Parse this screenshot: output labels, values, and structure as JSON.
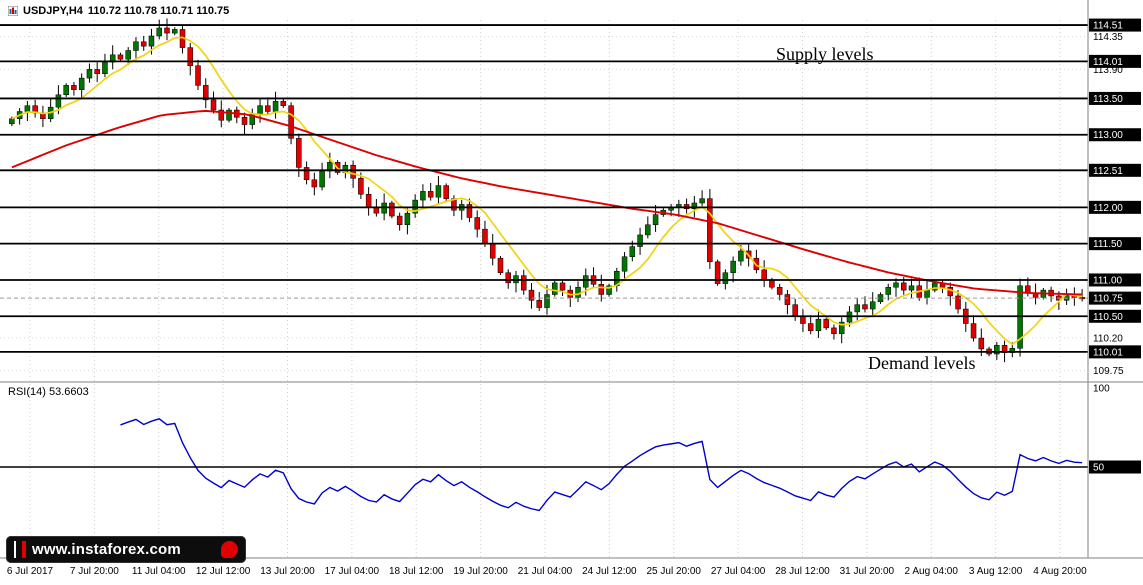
{
  "header": {
    "symbol": "USDJPY,H4",
    "ohlc": "110.72 110.78 110.71 110.75"
  },
  "annotations": {
    "supply": "Supply levels",
    "demand": "Demand levels"
  },
  "footer": {
    "logo_text": "www.instaforex.com"
  },
  "chart_data": {
    "type": "candlestick",
    "symbol": "USDJPY",
    "timeframe": "H4",
    "ohlc_current": {
      "open": 110.72,
      "high": 110.78,
      "low": 110.71,
      "close": 110.75
    },
    "colors": {
      "up": "#007500",
      "down": "#e00000",
      "ma_fast": "#f2d40e",
      "ma_slow": "#dd0000",
      "rsi": "#0000cc",
      "levels": "#000000"
    },
    "price_axis": {
      "min": 109.65,
      "max": 114.58,
      "labels": [
        {
          "text": "114.51",
          "value": 114.51,
          "tagged": true
        },
        {
          "text": "114.35",
          "value": 114.35,
          "tagged": false
        },
        {
          "text": "114.01",
          "value": 114.01,
          "tagged": true
        },
        {
          "text": "113.90",
          "value": 113.9,
          "tagged": false
        },
        {
          "text": "113.50",
          "value": 113.5,
          "tagged": true
        },
        {
          "text": "113.00",
          "value": 113.0,
          "tagged": true
        },
        {
          "text": "112.51",
          "value": 112.51,
          "tagged": true
        },
        {
          "text": "112.00",
          "value": 112.0,
          "tagged": true
        },
        {
          "text": "111.50",
          "value": 111.5,
          "tagged": true
        },
        {
          "text": "111.00",
          "value": 111.0,
          "tagged": true
        },
        {
          "text": "110.75",
          "value": 110.75,
          "tagged": true
        },
        {
          "text": "110.50",
          "value": 110.5,
          "tagged": true
        },
        {
          "text": "110.20",
          "value": 110.2,
          "tagged": false
        },
        {
          "text": "110.01",
          "value": 110.01,
          "tagged": true
        },
        {
          "text": "109.75",
          "value": 109.75,
          "tagged": false
        }
      ]
    },
    "hlines": [
      114.51,
      114.01,
      113.5,
      113.0,
      112.51,
      112.0,
      111.5,
      111.0,
      110.5,
      110.01
    ],
    "current_price": 110.75,
    "time_labels": [
      "6 Jul 2017",
      "7 Jul 20:00",
      "11 Jul 04:00",
      "12 Jul 12:00",
      "13 Jul 20:00",
      "17 Jul 04:00",
      "18 Jul 12:00",
      "19 Jul 20:00",
      "21 Jul 04:00",
      "24 Jul 12:00",
      "25 Jul 20:00",
      "27 Jul 04:00",
      "28 Jul 12:00",
      "31 Jul 20:00",
      "2 Aug 04:00",
      "3 Aug 12:00",
      "4 Aug 20:00"
    ],
    "candles": {
      "first_open": 113.15,
      "closes": [
        113.22,
        113.32,
        113.4,
        113.3,
        113.22,
        113.38,
        113.55,
        113.68,
        113.62,
        113.78,
        113.9,
        113.84,
        114.0,
        114.1,
        114.04,
        114.16,
        114.28,
        114.22,
        114.36,
        114.47,
        114.4,
        114.45,
        114.2,
        113.95,
        113.68,
        113.48,
        113.34,
        113.2,
        113.34,
        113.24,
        113.14,
        113.28,
        113.4,
        113.32,
        113.46,
        113.4,
        112.95,
        112.55,
        112.38,
        112.28,
        112.5,
        112.62,
        112.48,
        112.58,
        112.4,
        112.18,
        112.0,
        111.92,
        112.06,
        111.88,
        111.76,
        111.92,
        112.1,
        112.22,
        112.14,
        112.3,
        112.12,
        111.96,
        112.04,
        111.86,
        111.7,
        111.5,
        111.3,
        111.1,
        110.96,
        111.06,
        110.86,
        110.72,
        110.62,
        110.8,
        110.96,
        110.86,
        110.76,
        110.9,
        111.06,
        110.94,
        110.8,
        110.92,
        111.12,
        111.32,
        111.46,
        111.62,
        111.76,
        111.9,
        111.96,
        112.0,
        112.04,
        111.98,
        112.06,
        112.12,
        111.25,
        110.95,
        111.1,
        111.26,
        111.4,
        111.3,
        111.14,
        111.0,
        110.9,
        110.8,
        110.66,
        110.5,
        110.4,
        110.3,
        110.46,
        110.34,
        110.26,
        110.42,
        110.56,
        110.66,
        110.6,
        110.7,
        110.8,
        110.9,
        110.96,
        110.86,
        110.92,
        110.76,
        110.86,
        110.96,
        110.9,
        110.78,
        110.6,
        110.4,
        110.2,
        110.05,
        109.98,
        110.1,
        110.0,
        110.06,
        110.92,
        110.82,
        110.76,
        110.86,
        110.78,
        110.72,
        110.8,
        110.76,
        110.75
      ]
    },
    "ma_fast": {
      "type": "SMA",
      "period": 7
    },
    "ma_slow": {
      "type": "SMA",
      "points": [
        [
          0.0,
          112.55
        ],
        [
          0.05,
          112.85
        ],
        [
          0.1,
          113.1
        ],
        [
          0.14,
          113.27
        ],
        [
          0.18,
          113.33
        ],
        [
          0.22,
          113.28
        ],
        [
          0.26,
          113.12
        ],
        [
          0.3,
          112.92
        ],
        [
          0.34,
          112.72
        ],
        [
          0.38,
          112.55
        ],
        [
          0.42,
          112.4
        ],
        [
          0.46,
          112.28
        ],
        [
          0.5,
          112.18
        ],
        [
          0.54,
          112.08
        ],
        [
          0.58,
          111.98
        ],
        [
          0.62,
          111.9
        ],
        [
          0.66,
          111.78
        ],
        [
          0.7,
          111.6
        ],
        [
          0.74,
          111.42
        ],
        [
          0.78,
          111.25
        ],
        [
          0.82,
          111.1
        ],
        [
          0.86,
          110.98
        ],
        [
          0.9,
          110.88
        ],
        [
          0.95,
          110.82
        ],
        [
          1.0,
          110.8
        ]
      ]
    },
    "rsi": {
      "period": 14,
      "value_label": "RSI(14) 53.6603",
      "last": 53.6603,
      "level": 50,
      "axis_labels": [
        {
          "text": "100",
          "value": 100,
          "tagged": false
        },
        {
          "text": "50",
          "value": 50,
          "tagged": true
        }
      ]
    }
  }
}
